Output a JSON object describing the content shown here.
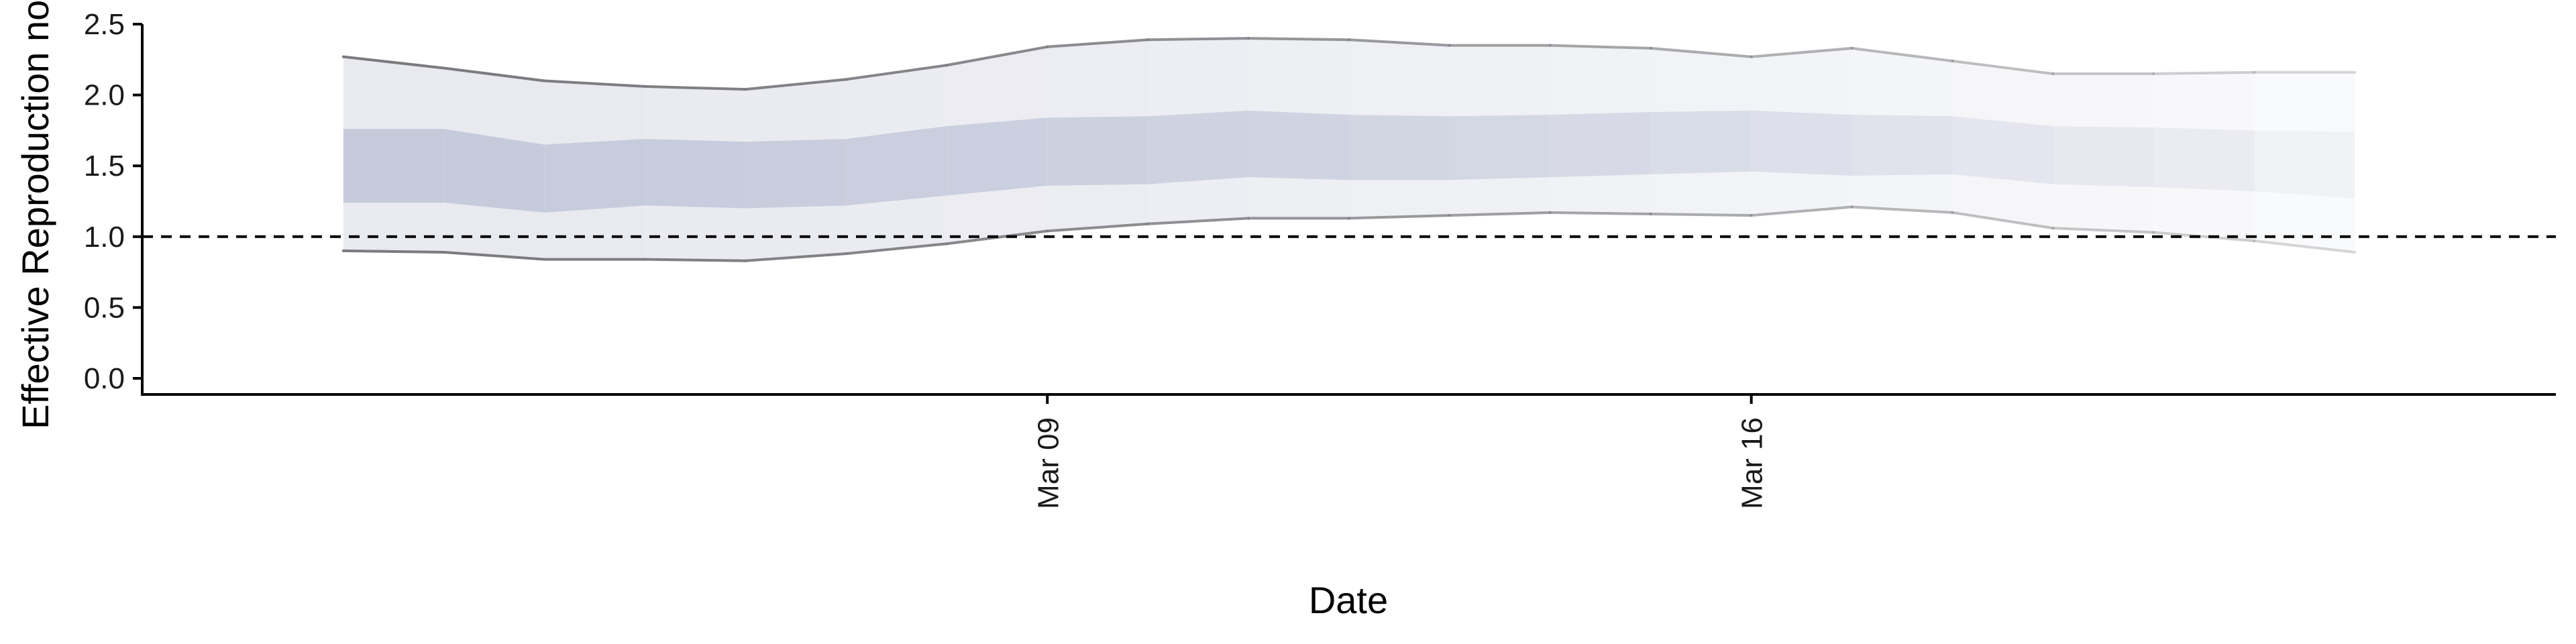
{
  "chart_data": {
    "type": "area",
    "xlabel": "Date",
    "ylabel": "Effective Reproduction no",
    "ylim": [
      0,
      2.5
    ],
    "xlim": [
      "2020-02-29",
      "2020-03-24"
    ],
    "x_ticks": [
      {
        "date": "2020-03-09",
        "label": "Mar 09"
      },
      {
        "date": "2020-03-16",
        "label": "Mar 16"
      }
    ],
    "y_ticks": [
      {
        "value": 0.0,
        "label": "0.0"
      },
      {
        "value": 0.5,
        "label": "0.5"
      },
      {
        "value": 1.0,
        "label": "1.0"
      },
      {
        "value": 1.5,
        "label": "1.5"
      },
      {
        "value": 2.0,
        "label": "2.0"
      },
      {
        "value": 2.5,
        "label": "2.5"
      }
    ],
    "reference_line": {
      "y": 1.0,
      "style": "dashed"
    },
    "dates": [
      "2020-03-02",
      "2020-03-03",
      "2020-03-04",
      "2020-03-05",
      "2020-03-06",
      "2020-03-07",
      "2020-03-08",
      "2020-03-09",
      "2020-03-10",
      "2020-03-11",
      "2020-03-12",
      "2020-03-13",
      "2020-03-14",
      "2020-03-15",
      "2020-03-16",
      "2020-03-17",
      "2020-03-18",
      "2020-03-19",
      "2020-03-20",
      "2020-03-21",
      "2020-03-22"
    ],
    "ci95_upper": [
      2.27,
      2.19,
      2.1,
      2.06,
      2.04,
      2.11,
      2.21,
      2.34,
      2.39,
      2.4,
      2.39,
      2.35,
      2.35,
      2.33,
      2.27,
      2.33,
      2.24,
      2.15,
      2.15,
      2.16,
      2.16
    ],
    "ci50_upper": [
      1.76,
      1.76,
      1.65,
      1.69,
      1.67,
      1.69,
      1.78,
      1.84,
      1.85,
      1.89,
      1.86,
      1.85,
      1.86,
      1.88,
      1.89,
      1.86,
      1.85,
      1.78,
      1.77,
      1.75,
      1.74
    ],
    "ci50_lower": [
      1.24,
      1.24,
      1.17,
      1.22,
      1.2,
      1.22,
      1.29,
      1.36,
      1.37,
      1.42,
      1.4,
      1.4,
      1.42,
      1.44,
      1.46,
      1.43,
      1.44,
      1.37,
      1.35,
      1.32,
      1.27
    ],
    "ci95_lower": [
      0.9,
      0.89,
      0.84,
      0.84,
      0.83,
      0.88,
      0.95,
      1.04,
      1.09,
      1.13,
      1.13,
      1.15,
      1.17,
      1.16,
      1.15,
      1.21,
      1.17,
      1.06,
      1.03,
      0.97,
      0.89
    ],
    "colors": {
      "band_outer": "#e9eaf0",
      "band_inner": "#c6cbdc",
      "bound_line": "#7a7a7f",
      "axis": "#000000",
      "reference": "#000000"
    },
    "fade_toward_recent": true,
    "grid": false,
    "legend": "none"
  }
}
